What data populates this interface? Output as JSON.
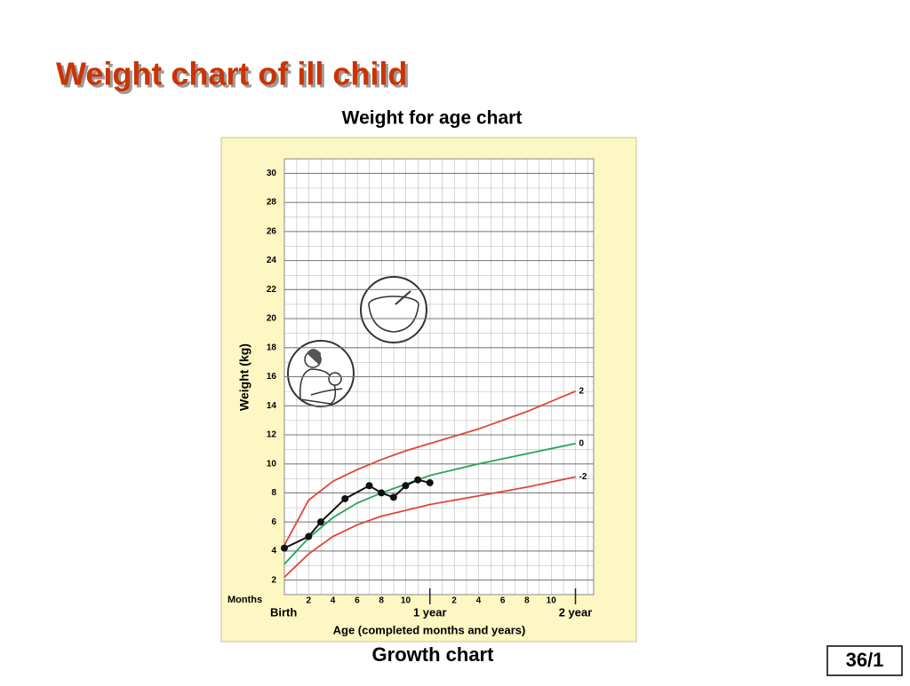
{
  "title": "Weight chart of ill child",
  "slide_number": "36/1",
  "caption": "Growth chart",
  "chart_data": {
    "type": "line",
    "title": "Weight for age chart",
    "x_unit_label": "Months",
    "xlabel": "Age (completed months and years)",
    "ylabel": "Weight (kg)",
    "xlim": [
      0,
      25.5
    ],
    "ylim": [
      1,
      31
    ],
    "xticks": [
      {
        "value": 0,
        "label": "Birth"
      },
      2,
      4,
      6,
      8,
      10,
      {
        "value": 12,
        "label": "1 year"
      },
      {
        "value": 14,
        "label": "2"
      },
      {
        "value": 16,
        "label": "4"
      },
      {
        "value": 18,
        "label": "6"
      },
      {
        "value": 20,
        "label": "8"
      },
      {
        "value": 22,
        "label": "10"
      },
      {
        "value": 24,
        "label": "2 year"
      }
    ],
    "yticks": [
      2,
      4,
      6,
      8,
      10,
      12,
      14,
      16,
      18,
      20,
      22,
      24,
      26,
      28,
      30
    ],
    "grid": true,
    "series": [
      {
        "name": "2",
        "color": "#e0463a",
        "x": [
          0,
          2,
          4,
          6,
          8,
          10,
          12,
          16,
          20,
          24
        ],
        "values": [
          4.4,
          7.5,
          8.8,
          9.6,
          10.3,
          10.9,
          11.4,
          12.4,
          13.6,
          15
        ]
      },
      {
        "name": "0",
        "color": "#27a35a",
        "x": [
          0,
          2,
          4,
          6,
          8,
          10,
          12,
          16,
          20,
          24
        ],
        "values": [
          3.1,
          4.9,
          6.3,
          7.3,
          8.0,
          8.6,
          9.2,
          10.0,
          10.7,
          11.4
        ]
      },
      {
        "name": "-2",
        "color": "#e0463a",
        "x": [
          0,
          2,
          4,
          6,
          8,
          10,
          12,
          16,
          20,
          24
        ],
        "values": [
          2.2,
          3.8,
          5.0,
          5.8,
          6.4,
          6.8,
          7.2,
          7.8,
          8.4,
          9.1
        ]
      },
      {
        "color": "#111111",
        "markers": true,
        "x": [
          0,
          2,
          3,
          5,
          7,
          8,
          9,
          10,
          11,
          12
        ],
        "values": [
          4.2,
          5.0,
          6.0,
          7.6,
          8.5,
          8.0,
          7.7,
          8.5,
          8.9,
          8.7
        ]
      }
    ]
  }
}
